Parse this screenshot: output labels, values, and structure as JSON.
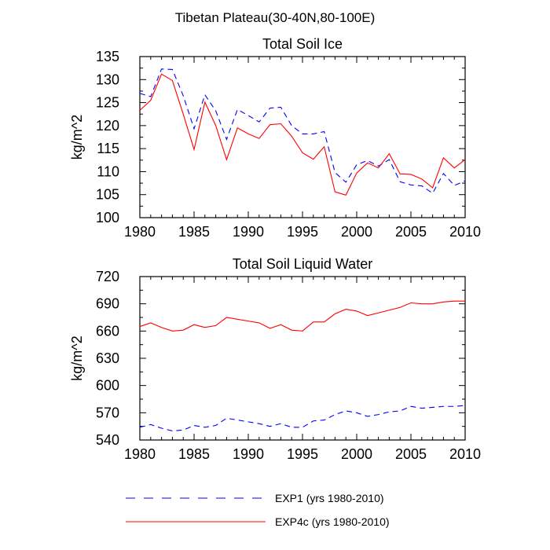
{
  "figure": {
    "suptitle": "Tibetan Plateau(30-40N,80-100E)"
  },
  "legend": [
    {
      "label": "EXP1 (yrs 1980-2010)",
      "color": "#0000ff",
      "dash": true
    },
    {
      "label": "EXP4c (yrs 1980-2010)",
      "color": "#ff0000",
      "dash": false
    }
  ],
  "chart_data": [
    {
      "type": "line",
      "title": "Total Soil Ice",
      "xlabel": "",
      "ylabel": "kg/m^2",
      "xlim": [
        1980,
        2010
      ],
      "ylim": [
        100,
        135
      ],
      "xticks": [
        1980,
        1985,
        1990,
        1995,
        2000,
        2005,
        2010
      ],
      "yticks": [
        100,
        105,
        110,
        115,
        120,
        125,
        130,
        135
      ],
      "x": [
        1980,
        1981,
        1982,
        1983,
        1984,
        1985,
        1986,
        1987,
        1988,
        1989,
        1990,
        1991,
        1992,
        1993,
        1994,
        1995,
        1996,
        1997,
        1998,
        1999,
        2000,
        2001,
        2002,
        2003,
        2004,
        2005,
        2006,
        2007,
        2008,
        2009,
        2010
      ],
      "series": [
        {
          "name": "EXP1 (yrs 1980-2010)",
          "color": "#0000ff",
          "dash": true,
          "values": [
            127.0,
            126.3,
            132.3,
            132.2,
            126.5,
            119.3,
            126.7,
            123.2,
            117.0,
            123.5,
            122.2,
            120.8,
            123.8,
            124.0,
            120.0,
            118.2,
            118.2,
            118.7,
            109.8,
            107.7,
            111.5,
            112.4,
            111.2,
            112.6,
            107.8,
            107.1,
            106.9,
            105.3,
            109.6,
            107.0,
            108.0
          ]
        },
        {
          "name": "EXP4c (yrs 1980-2010)",
          "color": "#ff0000",
          "dash": false,
          "values": [
            123.3,
            125.5,
            131.2,
            129.8,
            122.5,
            114.8,
            125.1,
            120.0,
            112.6,
            119.5,
            118.2,
            117.2,
            120.2,
            120.4,
            117.7,
            114.1,
            112.7,
            115.4,
            105.6,
            104.9,
            109.7,
            111.9,
            110.8,
            113.9,
            109.5,
            109.4,
            108.4,
            106.5,
            113.0,
            110.8,
            112.6
          ]
        }
      ]
    },
    {
      "type": "line",
      "title": "Total Soil Liquid Water",
      "xlabel": "",
      "ylabel": "kg/m^2",
      "xlim": [
        1980,
        2010
      ],
      "ylim": [
        540,
        720
      ],
      "xticks": [
        1980,
        1985,
        1990,
        1995,
        2000,
        2005,
        2010
      ],
      "yticks": [
        540,
        570,
        600,
        630,
        660,
        690,
        720
      ],
      "x": [
        1980,
        1981,
        1982,
        1983,
        1984,
        1985,
        1986,
        1987,
        1988,
        1989,
        1990,
        1991,
        1992,
        1993,
        1994,
        1995,
        1996,
        1997,
        1998,
        1999,
        2000,
        2001,
        2002,
        2003,
        2004,
        2005,
        2006,
        2007,
        2008,
        2009,
        2010
      ],
      "series": [
        {
          "name": "EXP1 (yrs 1980-2010)",
          "color": "#0000ff",
          "dash": true,
          "values": [
            554,
            557,
            553,
            550,
            551,
            556,
            554,
            556,
            564,
            562,
            560,
            558,
            555,
            558,
            554,
            554,
            561,
            562,
            568,
            572,
            570,
            566,
            568,
            571,
            572,
            577,
            575,
            576,
            577,
            577,
            578
          ]
        },
        {
          "name": "EXP4c (yrs 1980-2010)",
          "color": "#ff0000",
          "dash": false,
          "values": [
            665,
            669,
            664,
            660,
            661,
            667,
            664,
            666,
            675,
            673,
            671,
            669,
            663,
            667,
            661,
            660,
            670,
            670,
            679,
            684,
            682,
            677,
            680,
            683,
            686,
            691,
            690,
            690,
            692,
            693,
            693
          ]
        }
      ]
    }
  ]
}
